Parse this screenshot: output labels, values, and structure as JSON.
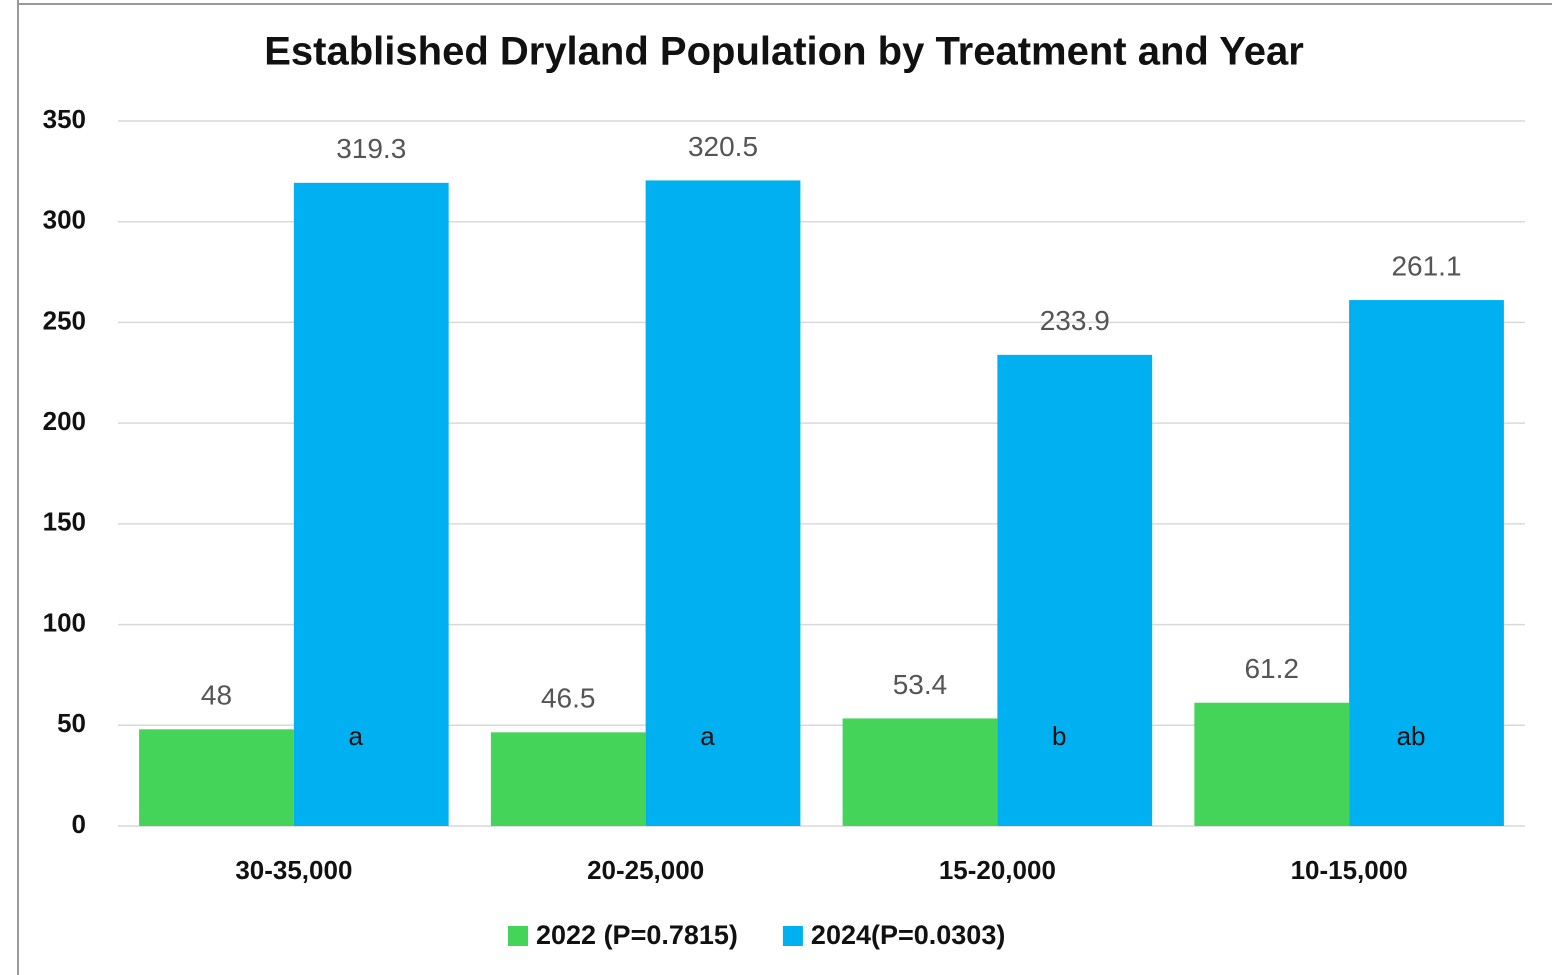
{
  "chart_data": {
    "type": "bar",
    "title": "Established Dryland Population by Treatment and Year",
    "categories": [
      "30-35,000",
      "20-25,000",
      "15-20,000",
      "10-15,000"
    ],
    "series": [
      {
        "name": "2022 (P=0.7815)",
        "color": "#45d45a",
        "values": [
          48,
          46.5,
          53.4,
          61.2
        ]
      },
      {
        "name": "2024(P=0.0303)",
        "color": "#00b0f0",
        "values": [
          319.3,
          320.5,
          233.9,
          261.1
        ]
      }
    ],
    "annotations": [
      "a",
      "a",
      "b",
      "ab"
    ],
    "ylim": [
      0,
      350
    ],
    "yticks": [
      0,
      50,
      100,
      150,
      200,
      250,
      300,
      350
    ],
    "grid": true,
    "legend": "bottom"
  }
}
